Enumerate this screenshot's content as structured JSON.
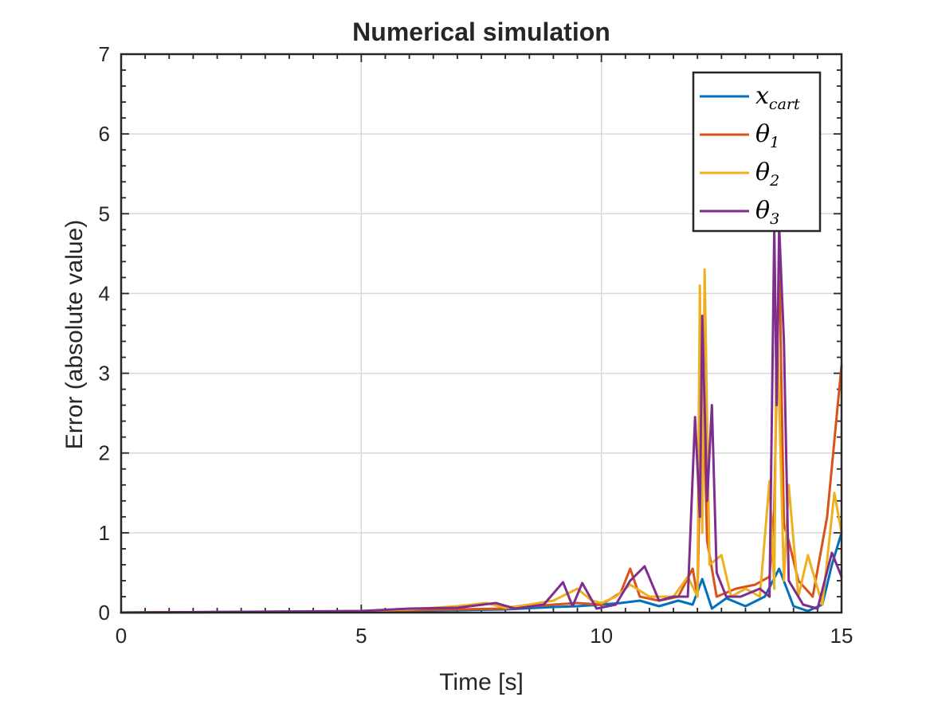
{
  "chart_data": {
    "type": "line",
    "title": "Numerical simulation",
    "xlabel": "Time [s]",
    "ylabel": "Error (absolute value)",
    "xlim": [
      0,
      15
    ],
    "ylim": [
      0,
      7
    ],
    "xticks": [
      0,
      5,
      10,
      15
    ],
    "yticks": [
      0,
      1,
      2,
      3,
      4,
      5,
      6,
      7
    ],
    "grid": true,
    "legend_position": "top-right",
    "series": [
      {
        "name": "x_cart",
        "legend_main": "x",
        "legend_sub": "cart",
        "color": "#0072BD",
        "points": [
          [
            0,
            0
          ],
          [
            3,
            0.01
          ],
          [
            6,
            0.02
          ],
          [
            8,
            0.04
          ],
          [
            9,
            0.07
          ],
          [
            9.5,
            0.08
          ],
          [
            10,
            0.1
          ],
          [
            10.4,
            0.12
          ],
          [
            10.8,
            0.15
          ],
          [
            11.2,
            0.08
          ],
          [
            11.6,
            0.15
          ],
          [
            11.9,
            0.1
          ],
          [
            12.1,
            0.42
          ],
          [
            12.3,
            0.05
          ],
          [
            12.6,
            0.18
          ],
          [
            13,
            0.08
          ],
          [
            13.4,
            0.2
          ],
          [
            13.7,
            0.55
          ],
          [
            14,
            0.08
          ],
          [
            14.3,
            0.02
          ],
          [
            14.6,
            0.1
          ],
          [
            14.8,
            0.6
          ],
          [
            15,
            1.0
          ]
        ]
      },
      {
        "name": "θ1",
        "legend_main": "θ",
        "legend_sub": "1",
        "color": "#D95319",
        "points": [
          [
            0,
            0
          ],
          [
            4,
            0.01
          ],
          [
            6,
            0.03
          ],
          [
            8,
            0.05
          ],
          [
            9,
            0.1
          ],
          [
            9.5,
            0.12
          ],
          [
            10,
            0.1
          ],
          [
            10.4,
            0.25
          ],
          [
            10.6,
            0.55
          ],
          [
            10.8,
            0.2
          ],
          [
            11.2,
            0.15
          ],
          [
            11.6,
            0.2
          ],
          [
            11.9,
            0.55
          ],
          [
            12,
            0.2
          ],
          [
            12.1,
            3.2
          ],
          [
            12.2,
            0.9
          ],
          [
            12.4,
            0.2
          ],
          [
            12.8,
            0.3
          ],
          [
            13.2,
            0.35
          ],
          [
            13.5,
            0.45
          ],
          [
            13.6,
            1.3
          ],
          [
            13.7,
            4.5
          ],
          [
            13.8,
            1.1
          ],
          [
            13.9,
            0.9
          ],
          [
            14.1,
            0.4
          ],
          [
            14.4,
            0.2
          ],
          [
            14.7,
            1.2
          ],
          [
            15,
            3.1
          ]
        ]
      },
      {
        "name": "θ2",
        "legend_main": "θ",
        "legend_sub": "2",
        "color": "#EDB120",
        "points": [
          [
            0,
            0
          ],
          [
            4,
            0.01
          ],
          [
            5,
            0.02
          ],
          [
            6,
            0.04
          ],
          [
            7,
            0.08
          ],
          [
            7.6,
            0.12
          ],
          [
            8,
            0.06
          ],
          [
            8.5,
            0.1
          ],
          [
            9,
            0.15
          ],
          [
            9.5,
            0.3
          ],
          [
            9.8,
            0.15
          ],
          [
            10,
            0.12
          ],
          [
            10.3,
            0.2
          ],
          [
            10.6,
            0.35
          ],
          [
            11,
            0.2
          ],
          [
            11.5,
            0.2
          ],
          [
            11.8,
            0.45
          ],
          [
            12,
            0.2
          ],
          [
            12.05,
            4.1
          ],
          [
            12.1,
            1.0
          ],
          [
            12.15,
            4.3
          ],
          [
            12.25,
            0.6
          ],
          [
            12.5,
            0.72
          ],
          [
            12.7,
            0.2
          ],
          [
            13,
            0.3
          ],
          [
            13.3,
            0.2
          ],
          [
            13.5,
            1.65
          ],
          [
            13.6,
            0.3
          ],
          [
            13.65,
            3.8
          ],
          [
            13.8,
            0.4
          ],
          [
            13.9,
            1.6
          ],
          [
            14.1,
            0.2
          ],
          [
            14.3,
            0.72
          ],
          [
            14.6,
            0.1
          ],
          [
            14.85,
            1.5
          ],
          [
            15,
            1.0
          ]
        ]
      },
      {
        "name": "θ3",
        "legend_main": "θ",
        "legend_sub": "3",
        "color": "#7E2F8E",
        "points": [
          [
            0,
            0
          ],
          [
            5,
            0.02
          ],
          [
            6,
            0.05
          ],
          [
            7,
            0.06
          ],
          [
            7.8,
            0.12
          ],
          [
            8.2,
            0.05
          ],
          [
            8.8,
            0.1
          ],
          [
            9.2,
            0.38
          ],
          [
            9.4,
            0.08
          ],
          [
            9.6,
            0.37
          ],
          [
            9.9,
            0.05
          ],
          [
            10.3,
            0.1
          ],
          [
            10.6,
            0.4
          ],
          [
            10.9,
            0.58
          ],
          [
            11.2,
            0.15
          ],
          [
            11.5,
            0.2
          ],
          [
            11.8,
            0.2
          ],
          [
            11.95,
            2.45
          ],
          [
            12.05,
            1.2
          ],
          [
            12.1,
            3.72
          ],
          [
            12.2,
            1.4
          ],
          [
            12.3,
            2.6
          ],
          [
            12.4,
            0.5
          ],
          [
            12.6,
            0.2
          ],
          [
            12.9,
            0.2
          ],
          [
            13.3,
            0.3
          ],
          [
            13.5,
            0.2
          ],
          [
            13.6,
            4.8
          ],
          [
            13.65,
            2.6
          ],
          [
            13.7,
            4.85
          ],
          [
            13.8,
            3.4
          ],
          [
            13.9,
            0.4
          ],
          [
            14.2,
            0.1
          ],
          [
            14.5,
            0.05
          ],
          [
            14.8,
            0.75
          ],
          [
            15,
            0.45
          ]
        ]
      }
    ]
  }
}
